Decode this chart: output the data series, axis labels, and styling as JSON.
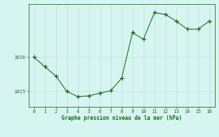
{
  "x": [
    0,
    1,
    2,
    3,
    4,
    5,
    6,
    7,
    8,
    9,
    10,
    11,
    12,
    13,
    14,
    15,
    16
  ],
  "y": [
    1016.0,
    1015.72,
    1015.45,
    1015.0,
    1014.85,
    1014.87,
    1014.95,
    1015.02,
    1015.38,
    1016.72,
    1016.52,
    1017.3,
    1017.25,
    1017.05,
    1016.82,
    1016.82,
    1017.05
  ],
  "line_color": "#1a6b1a",
  "marker_color": "#1a6b1a",
  "bg_color": "#d6f5f0",
  "grid_color": "#b8ddd6",
  "xlabel": "Graphe pression niveau de la mer (hPa)",
  "xlabel_color": "#1a6b1a",
  "tick_color": "#1a6b1a",
  "ytick_labels": [
    "1015",
    "1016"
  ],
  "ytick_values": [
    1015.0,
    1016.0
  ],
  "ylim": [
    1014.55,
    1017.55
  ],
  "xlim": [
    -0.5,
    16.5
  ],
  "xticks": [
    0,
    1,
    2,
    3,
    4,
    5,
    6,
    7,
    8,
    9,
    10,
    11,
    12,
    13,
    14,
    15,
    16
  ],
  "figwidth": 3.2,
  "figheight": 2.0,
  "dpi": 100
}
